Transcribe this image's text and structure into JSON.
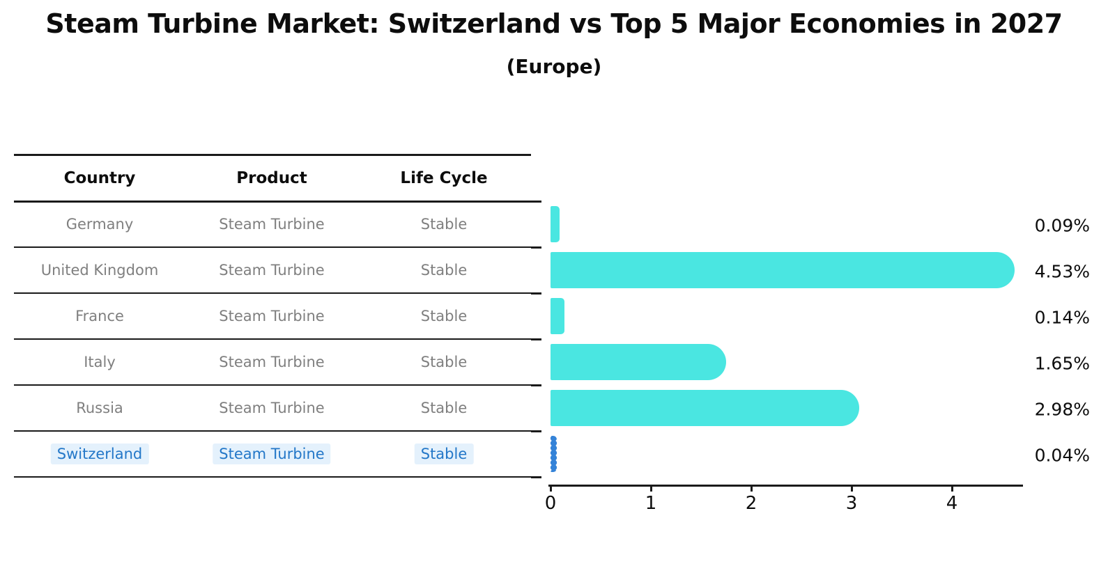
{
  "title": "Steam Turbine Market: Switzerland vs Top 5 Major Economies in 2027",
  "subtitle": "(Europe)",
  "table": {
    "headers": [
      "Country",
      "Product",
      "Life Cycle"
    ],
    "rows": [
      {
        "country": "Germany",
        "product": "Steam Turbine",
        "life_cycle": "Stable",
        "highlight": false
      },
      {
        "country": "United Kingdom",
        "product": "Steam Turbine",
        "life_cycle": "Stable",
        "highlight": false
      },
      {
        "country": "France",
        "product": "Steam Turbine",
        "life_cycle": "Stable",
        "highlight": false
      },
      {
        "country": "Italy",
        "product": "Steam Turbine",
        "life_cycle": "Stable",
        "highlight": false
      },
      {
        "country": "Russia",
        "product": "Steam Turbine",
        "life_cycle": "Stable",
        "highlight": true
      }
    ]
  },
  "chart_data": {
    "type": "bar",
    "orientation": "horizontal",
    "categories": [
      "Germany",
      "United Kingdom",
      "France",
      "Italy",
      "Russia",
      "Switzerland"
    ],
    "values": [
      0.09,
      4.53,
      0.14,
      1.65,
      2.98,
      0.04
    ],
    "value_labels": [
      "0.09%",
      "4.53%",
      "0.14%",
      "1.65%",
      "2.98%",
      "0.04%"
    ],
    "x_ticks": [
      "0",
      "1",
      "2",
      "3",
      "4"
    ],
    "xlim": [
      0,
      4.7
    ],
    "grid": false,
    "legend": false,
    "bar_color": "#4AE6E1",
    "highlight_bar_color": "#3583d8",
    "highlight_index": 5,
    "highlight_category": "Switzerland"
  },
  "colors": {
    "bar_cyan": "#4AE6E1",
    "switzerland_blue": "#3583d8",
    "switzerland_text": "#2377c8",
    "table_text_gray": "#7f7f7f",
    "heading_black": "#0d0d0d"
  }
}
